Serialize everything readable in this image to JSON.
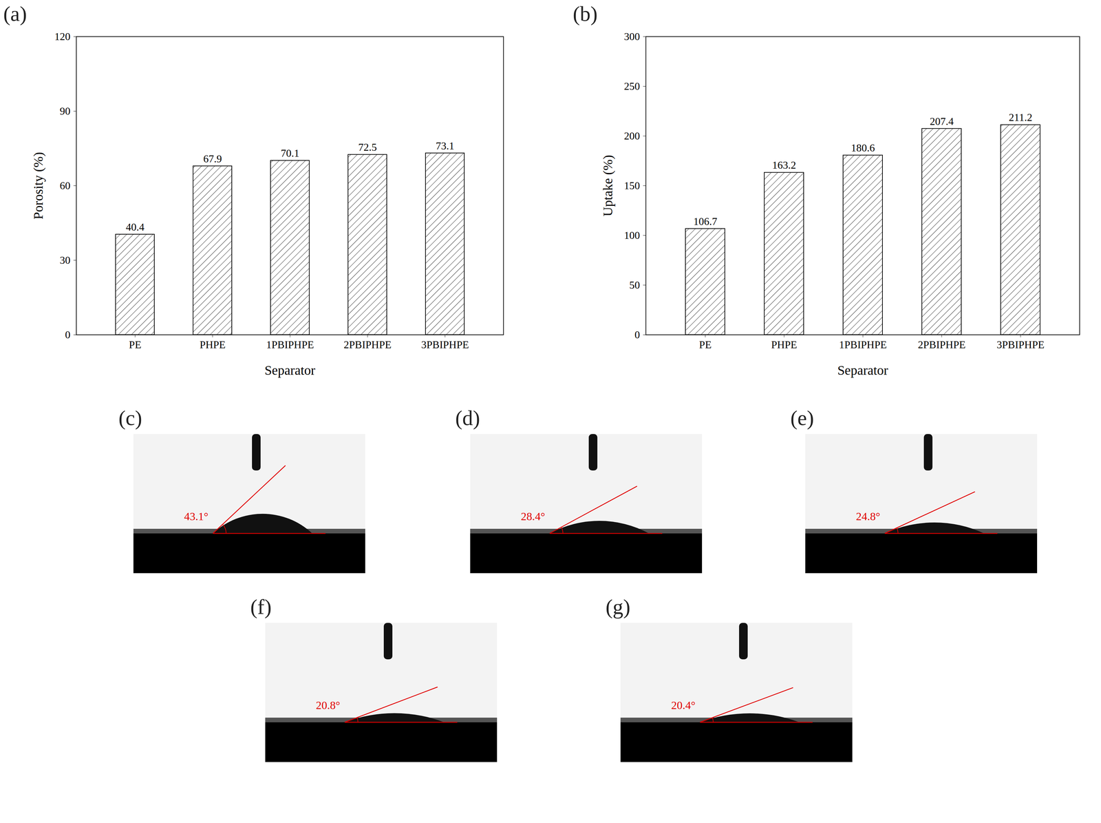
{
  "chart_data": [
    {
      "type": "bar",
      "panel_label": "(a)",
      "categories": [
        "PE",
        "PHPE",
        "1PBIPHPE",
        "2PBIPHPE",
        "3PBIPHPE"
      ],
      "values": [
        40.4,
        67.9,
        70.1,
        72.5,
        73.1
      ],
      "x_label": "Separator",
      "y_label": "Porosity (%)",
      "ylim": [
        0,
        120
      ],
      "yticks": [
        0,
        30,
        60,
        90,
        120
      ],
      "data_labels": true,
      "color": "#333333"
    },
    {
      "type": "bar",
      "panel_label": "(b)",
      "categories": [
        "PE",
        "PHPE",
        "1PBIPHPE",
        "2PBIPHPE",
        "3PBIPHPE"
      ],
      "values": [
        106.7,
        163.2,
        180.6,
        207.4,
        211.2
      ],
      "x_label": "Separator",
      "y_label": "Uptake (%)",
      "ylim": [
        0,
        300
      ],
      "yticks": [
        0,
        50,
        100,
        150,
        200,
        250,
        300
      ],
      "data_labels": true,
      "color": "#333333"
    }
  ],
  "images": [
    {
      "panel_label": "(c)",
      "angle": 43.1,
      "angle_label": "43.1°"
    },
    {
      "panel_label": "(d)",
      "angle": 28.4,
      "angle_label": "28.4°"
    },
    {
      "panel_label": "(e)",
      "angle": 24.8,
      "angle_label": "24.8°"
    },
    {
      "panel_label": "(f)",
      "angle": 20.8,
      "angle_label": "20.8°"
    },
    {
      "panel_label": "(g)",
      "angle": 20.4,
      "angle_label": "20.4°"
    }
  ]
}
